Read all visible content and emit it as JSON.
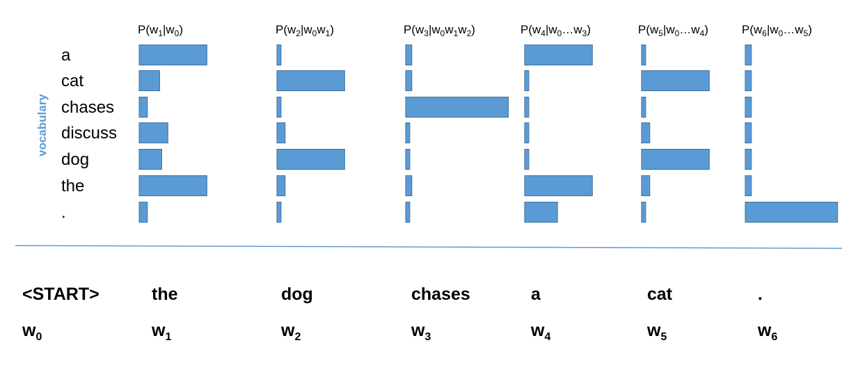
{
  "axis_label": "vocabulary",
  "vocabulary": [
    "a",
    "cat",
    "chases",
    "discuss",
    "dog",
    "the",
    "."
  ],
  "colors": {
    "bar_fill": "#5b9bd5",
    "bar_stroke": "#41719c",
    "axis_label": "#5b9bd5",
    "divider": "#5b9bd5",
    "text": "#000000"
  },
  "chart_data": {
    "type": "bar",
    "orientation": "horizontal",
    "categories": [
      "a",
      "cat",
      "chases",
      "discuss",
      "dog",
      "the",
      "."
    ],
    "panels": [
      {
        "title": {
          "pre": "P(w",
          "sub1": "1",
          "mid": "|w",
          "sub2": "0",
          "post": ")"
        },
        "values": [
          0.33,
          0.1,
          0.04,
          0.14,
          0.11,
          0.33,
          0.04
        ]
      },
      {
        "title": {
          "pre": "P(w",
          "sub1": "2",
          "mid": "|w",
          "sub2": "0",
          "mid2": "w",
          "sub3": "1",
          "post": ")"
        },
        "values": [
          0.02,
          0.33,
          0.02,
          0.04,
          0.33,
          0.04,
          0.02
        ]
      },
      {
        "title": {
          "pre": "P(w",
          "sub1": "3",
          "mid": "|w",
          "sub2": "0",
          "mid2": "w",
          "sub3": "1",
          "mid3": "w",
          "sub4": "2",
          "post": ")"
        },
        "values": [
          0.03,
          0.03,
          0.5,
          0.02,
          0.02,
          0.03,
          0.02
        ]
      },
      {
        "title": {
          "pre": "P(w",
          "sub1": "4",
          "mid": "|w",
          "sub2": "0",
          "mid2": "…w",
          "sub3": "3",
          "post": ")"
        },
        "values": [
          0.33,
          0.02,
          0.02,
          0.02,
          0.02,
          0.33,
          0.16
        ]
      },
      {
        "title": {
          "pre": "P(w",
          "sub1": "5",
          "mid": "|w",
          "sub2": "0",
          "mid2": "…w",
          "sub3": "4",
          "post": ")"
        },
        "values": [
          0.02,
          0.33,
          0.02,
          0.04,
          0.33,
          0.04,
          0.02
        ]
      },
      {
        "title": {
          "pre": "P(w",
          "sub1": "6",
          "mid": "|w",
          "sub2": "0",
          "mid2": "…w",
          "sub3": "5",
          "post": ")"
        },
        "values": [
          0.03,
          0.03,
          0.03,
          0.03,
          0.03,
          0.03,
          0.45
        ]
      }
    ]
  },
  "sequence": [
    {
      "token": "<START>",
      "var": "w",
      "sub": "0"
    },
    {
      "token": "the",
      "var": "w",
      "sub": "1"
    },
    {
      "token": "dog",
      "var": "w",
      "sub": "2"
    },
    {
      "token": "chases",
      "var": "w",
      "sub": "3"
    },
    {
      "token": "a",
      "var": "w",
      "sub": "4"
    },
    {
      "token": "cat",
      "var": "w",
      "sub": "5"
    },
    {
      "token": ".",
      "var": "w",
      "sub": "6"
    }
  ]
}
